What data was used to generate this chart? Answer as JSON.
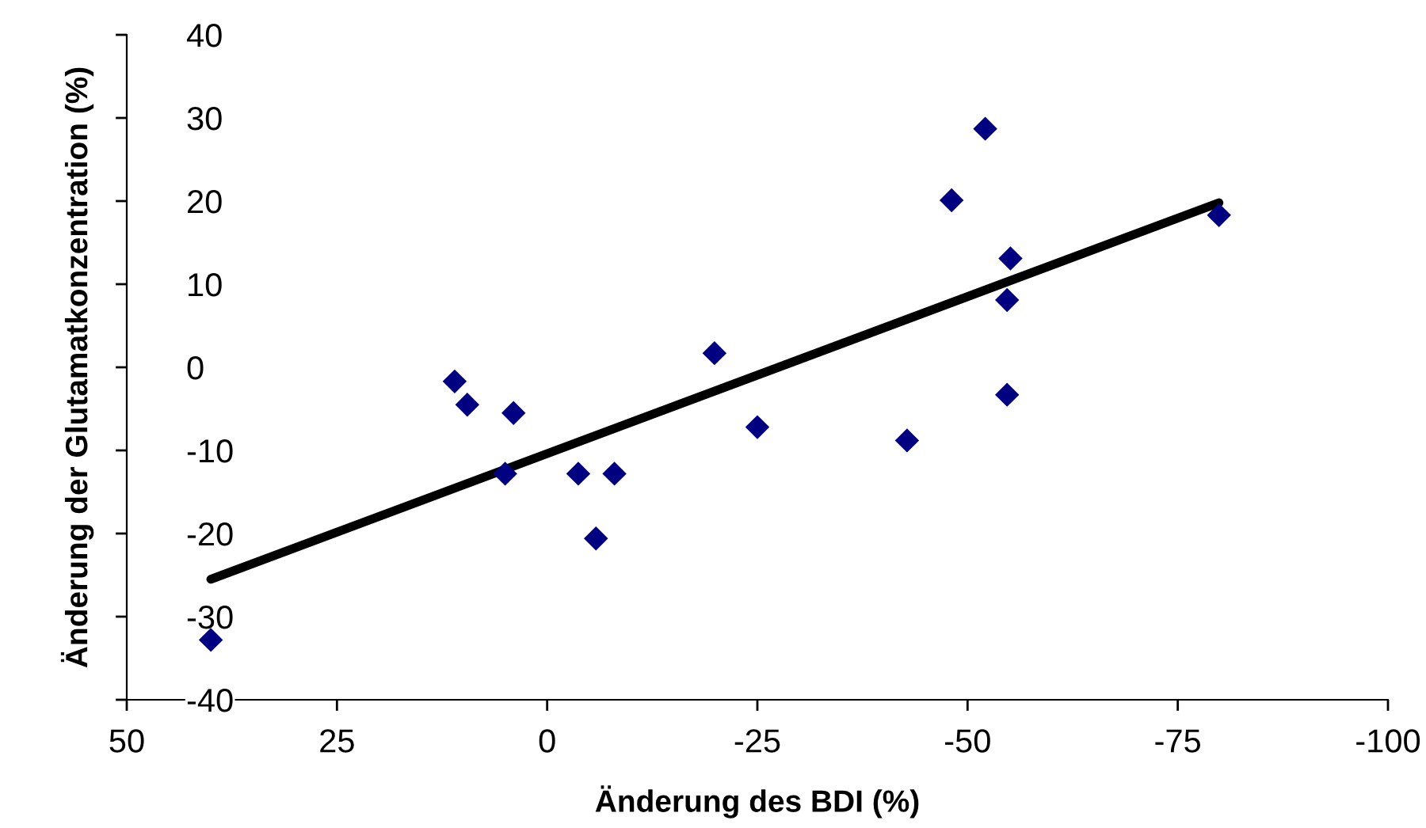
{
  "chart_data": {
    "type": "scatter",
    "xlabel": "Änderung des BDI (%)",
    "ylabel": "Änderung der Glutamatkonzentration (%)",
    "xlim": [
      50,
      -100
    ],
    "xticks": [
      50,
      25,
      0,
      -25,
      -50,
      -75,
      -100
    ],
    "ylim": [
      -40,
      40
    ],
    "yticks": [
      -40,
      -30,
      -20,
      -10,
      0,
      10,
      20,
      30,
      40
    ],
    "grid": false,
    "legend": false,
    "series": [
      {
        "marker": "diamond",
        "color": "#000080",
        "x": [
          40.0,
          11.0,
          9.5,
          4.0,
          5.0,
          -3.7,
          -8.0,
          -5.8,
          -19.9,
          -25.0,
          -42.8,
          -48.1,
          -52.1,
          -55.1,
          -54.7,
          -54.7,
          -79.9
        ],
        "values": [
          -32.8,
          -1.7,
          -4.5,
          -5.5,
          -12.8,
          -12.8,
          -12.8,
          -20.6,
          1.7,
          -7.2,
          -8.8,
          20.1,
          28.7,
          13.1,
          8.1,
          -3.3,
          18.3
        ]
      },
      {
        "type": "line",
        "color": "#000000",
        "x": [
          40.0,
          -79.9
        ],
        "values": [
          -25.5,
          19.8
        ]
      }
    ]
  }
}
